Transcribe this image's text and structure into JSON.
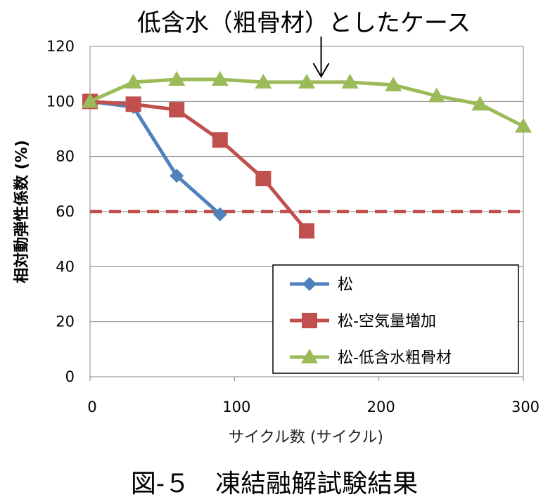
{
  "chart_data": {
    "type": "line",
    "annotation": "低含水（粗骨材）としたケース",
    "ylabel": "相対動弾性係数 (%)",
    "xlabel": "サイクル数 (サイクル)",
    "caption": "図-５　凍結融解試験結果",
    "xlim": [
      0,
      300
    ],
    "ylim": [
      0,
      120
    ],
    "x_ticks": [
      "0",
      "100",
      "200",
      "300"
    ],
    "y_ticks": [
      "0",
      "20",
      "40",
      "60",
      "80",
      "100",
      "120"
    ],
    "grid": "horizontal",
    "legend_position": "bottom-right",
    "annotation_arrow_x": 160,
    "threshold": {
      "value": 60,
      "color": "#c0504d",
      "style": "dashed"
    },
    "series": [
      {
        "name": "松",
        "color": "#4f81bd",
        "marker": "diamond",
        "x": [
          0,
          30,
          60,
          90
        ],
        "y": [
          100,
          98,
          73,
          59
        ]
      },
      {
        "name": "松-空気量増加",
        "color": "#c0504d",
        "marker": "square",
        "x": [
          0,
          30,
          60,
          90,
          120,
          150
        ],
        "y": [
          100,
          99,
          97,
          86,
          72,
          53
        ]
      },
      {
        "name": "松-低含水粗骨材",
        "color": "#9bbb59",
        "marker": "triangle",
        "x": [
          0,
          30,
          60,
          90,
          120,
          150,
          180,
          210,
          240,
          270,
          300
        ],
        "y": [
          100,
          107,
          108,
          108,
          107,
          107,
          107,
          106,
          102,
          99,
          91
        ]
      }
    ]
  }
}
